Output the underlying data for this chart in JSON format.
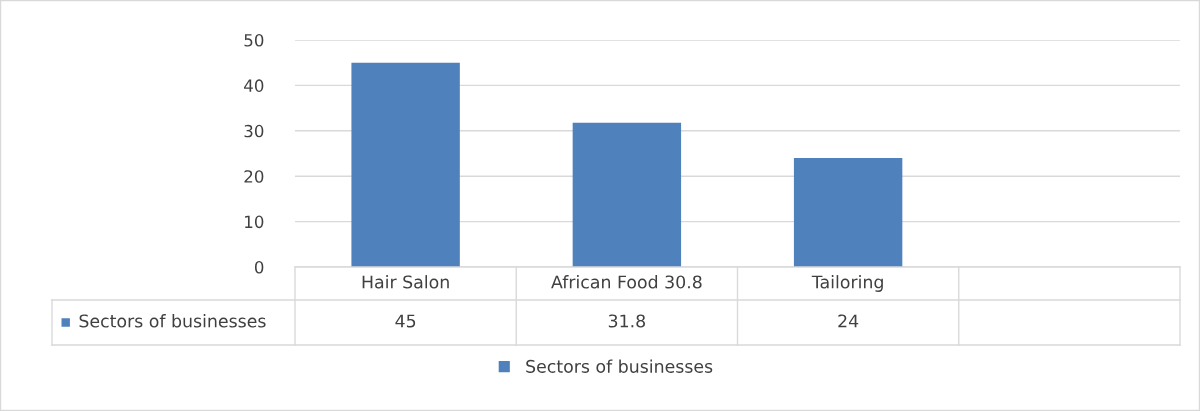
{
  "chart_data": {
    "type": "bar",
    "categories": [
      "Hair Salon",
      "African Food 30.8",
      "Tailoring",
      null
    ],
    "series": [
      {
        "name": "Sectors of businesses",
        "color": "#4f81bd",
        "values": [
          45,
          31.8,
          24,
          null
        ]
      }
    ],
    "ylim": [
      0,
      50
    ],
    "yticks": [
      0,
      10,
      20,
      30,
      40,
      50
    ],
    "grid": "y",
    "legend": "bottom",
    "data_labels": true
  }
}
